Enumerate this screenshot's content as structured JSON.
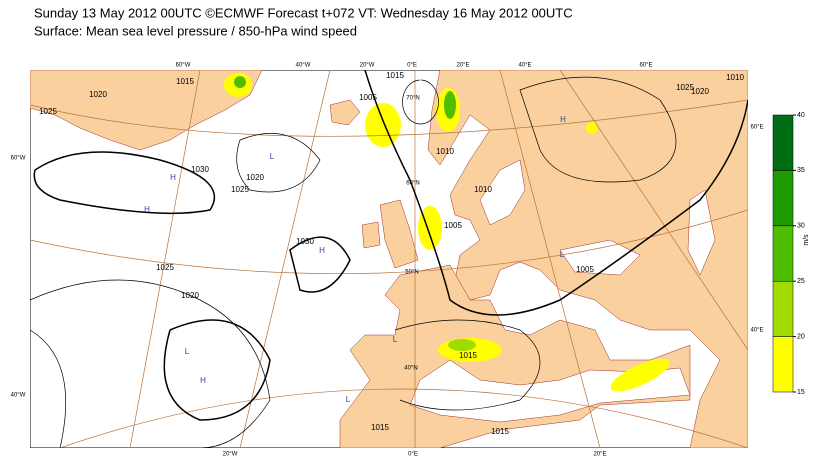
{
  "header": {
    "line1": "Sunday 13 May 2012 00UTC ©ECMWF Forecast t+072 VT: Wednesday 16 May 2012 00UTC",
    "line2": "Surface: Mean sea level pressure / 850-hPa wind speed"
  },
  "grid_labels": [
    "60°W",
    "40°W",
    "20°W",
    "0°E",
    "20°E",
    "40°E",
    "60°E",
    "20°W",
    "0°E",
    "20°E",
    "60°W",
    "40°W",
    "60°E",
    "40°E",
    "70°N",
    "60°N",
    "50°N",
    "40°N"
  ],
  "isobar_labels": [
    "1015",
    "1020",
    "1025",
    "1030",
    "1025",
    "1020",
    "1030",
    "1025",
    "1020",
    "1015",
    "1015",
    "1015",
    "1005",
    "1025",
    "1020",
    "1010",
    "1010",
    "1010",
    "1005",
    "1005",
    "1015"
  ],
  "pressure_centres": [
    "L",
    "L",
    "H",
    "H",
    "H",
    "H",
    "L",
    "H",
    "L",
    "L"
  ],
  "colorbar": {
    "unit": "m/s",
    "ticks": [
      15,
      20,
      25,
      30,
      35,
      40
    ],
    "colors": [
      "#ffff00",
      "#a0dc00",
      "#50be00",
      "#1e9b00",
      "#006e14"
    ]
  }
}
